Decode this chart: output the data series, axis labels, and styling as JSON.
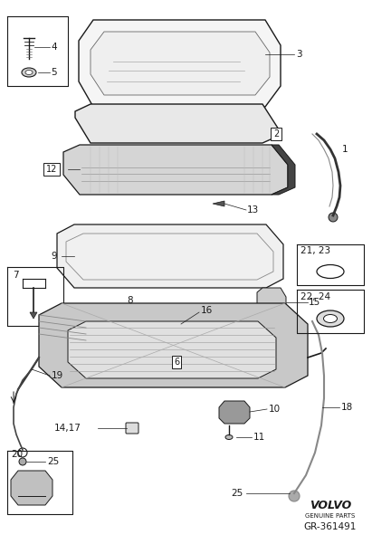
{
  "bg_color": "#ffffff",
  "line_color": "#1a1a1a",
  "volvo_text": "VOLVO",
  "volvo_sub": "GENUINE PARTS",
  "part_number": "GR-361491",
  "fig_width": 4.11,
  "fig_height": 6.01,
  "dpi": 100
}
